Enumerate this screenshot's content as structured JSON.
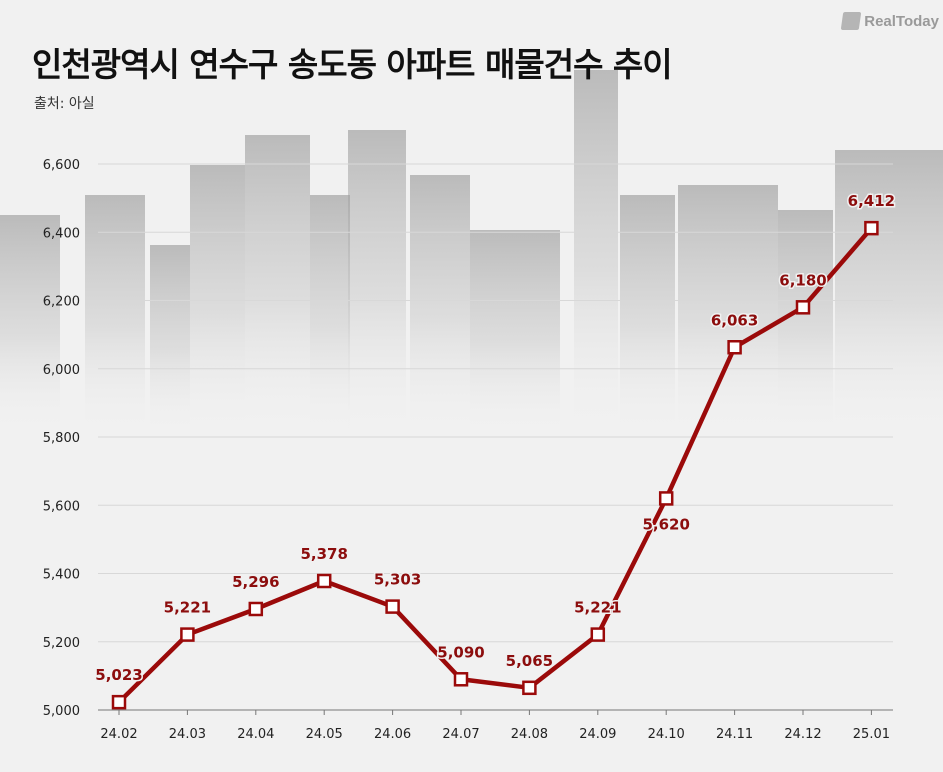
{
  "header": {
    "title": "인천광역시 연수구 송도동 아파트 매물건수 추이",
    "source": "출처: 아실",
    "brand": "RealToday"
  },
  "colors": {
    "line": "#9b0a0a",
    "label": "#8c0d0d",
    "axis_text": "#222222",
    "grid": "#d8d8d8"
  },
  "chart_data": {
    "type": "line",
    "title": "인천광역시 연수구 송도동 아파트 매물건수 추이",
    "xlabel": "",
    "ylabel": "",
    "categories": [
      "24.02",
      "24.03",
      "24.04",
      "24.05",
      "24.06",
      "24.07",
      "24.08",
      "24.09",
      "24.10",
      "24.11",
      "24.12",
      "25.01"
    ],
    "values": [
      5023,
      5221,
      5296,
      5378,
      5303,
      5090,
      5065,
      5221,
      5620,
      6063,
      6180,
      6412
    ],
    "value_labels": [
      "5,023",
      "5,221",
      "5,296",
      "5,378",
      "5,303",
      "5,090",
      "5,065",
      "5,221",
      "5,620",
      "6,063",
      "6,180",
      "6,412"
    ],
    "yticks": [
      5000,
      5200,
      5400,
      5600,
      5800,
      6000,
      6200,
      6400,
      6600
    ],
    "ytick_labels": [
      "5,000",
      "5,200",
      "5,400",
      "5,600",
      "5,800",
      "6,000",
      "6,200",
      "6,400",
      "6,600"
    ],
    "ylim": [
      5000,
      6600
    ],
    "grid": true
  }
}
